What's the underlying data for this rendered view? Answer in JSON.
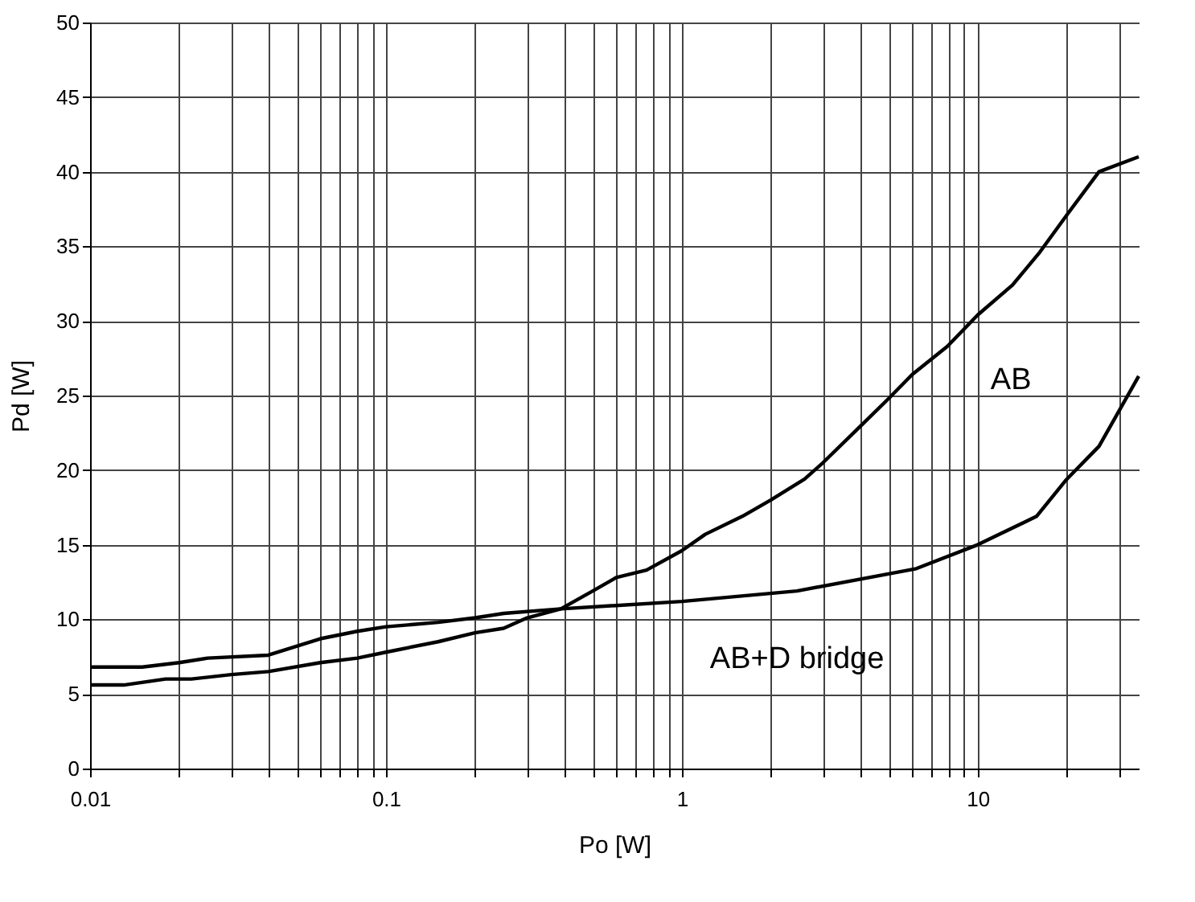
{
  "chart_data": {
    "type": "line",
    "xlabel": "Po [W]",
    "ylabel": "Pd [W]",
    "log": "x",
    "grid": true,
    "marker": "none",
    "line_style": "solid",
    "xlim": [
      0.01,
      35
    ],
    "ylim": [
      0,
      50
    ],
    "xticks": [
      0.01,
      {
        "value": 0.02,
        "label": null
      },
      {
        "value": 0.03,
        "label": null
      },
      {
        "value": 0.04,
        "label": null
      },
      {
        "value": 0.05,
        "label": null
      },
      {
        "value": 0.06,
        "label": null
      },
      {
        "value": 0.07,
        "label": null
      },
      {
        "value": 0.08,
        "label": null
      },
      {
        "value": 0.09,
        "label": null
      },
      0.1,
      {
        "value": 0.2,
        "label": null
      },
      {
        "value": 0.3,
        "label": null
      },
      {
        "value": 0.4,
        "label": null
      },
      {
        "value": 0.5,
        "label": null
      },
      {
        "value": 0.6,
        "label": null
      },
      {
        "value": 0.7,
        "label": null
      },
      {
        "value": 0.8,
        "label": null
      },
      {
        "value": 0.9,
        "label": null
      },
      1,
      {
        "value": 2,
        "label": null
      },
      {
        "value": 3,
        "label": null
      },
      {
        "value": 4,
        "label": null
      },
      {
        "value": 5,
        "label": null
      },
      {
        "value": 6,
        "label": null
      },
      {
        "value": 7,
        "label": null
      },
      {
        "value": 8,
        "label": null
      },
      {
        "value": 9,
        "label": null
      },
      10,
      {
        "value": 20,
        "label": null
      },
      {
        "value": 30,
        "label": null
      }
    ],
    "yticks": [
      0,
      5,
      10,
      15,
      20,
      25,
      30,
      35,
      40,
      45,
      50
    ],
    "series": [
      {
        "name": "AB",
        "color": "#000000",
        "x": [
          0.01,
          0.013,
          0.018,
          0.022,
          0.03,
          0.04,
          0.06,
          0.08,
          0.1,
          0.15,
          0.2,
          0.25,
          0.3,
          0.39,
          0.5,
          0.6,
          0.76,
          1,
          1.2,
          1.6,
          2,
          2.6,
          3,
          3.9,
          5,
          6,
          7.9,
          10,
          13.1,
          16.2,
          20,
          25.7,
          35
        ],
        "values": [
          5.6,
          5.6,
          6.0,
          6.0,
          6.3,
          6.5,
          7.1,
          7.4,
          7.8,
          8.5,
          9.1,
          9.4,
          10.1,
          10.7,
          11.9,
          12.8,
          13.3,
          14.6,
          15.7,
          16.9,
          18.0,
          19.4,
          20.5,
          22.7,
          24.8,
          26.4,
          28.3,
          30.4,
          32.4,
          34.6,
          37.1,
          40.0,
          41.0
        ]
      },
      {
        "name": "AB+D bridge",
        "color": "#000000",
        "x": [
          0.01,
          0.015,
          0.02,
          0.025,
          0.04,
          0.06,
          0.08,
          0.1,
          0.15,
          0.2,
          0.25,
          0.39,
          1,
          2.45,
          6.2,
          10,
          15.8,
          19.8,
          25.7,
          35
        ],
        "values": [
          6.8,
          6.8,
          7.1,
          7.4,
          7.6,
          8.7,
          9.2,
          9.5,
          9.8,
          10.1,
          10.4,
          10.7,
          11.2,
          11.9,
          13.4,
          15.0,
          16.9,
          19.3,
          21.6,
          26.3
        ]
      }
    ]
  }
}
